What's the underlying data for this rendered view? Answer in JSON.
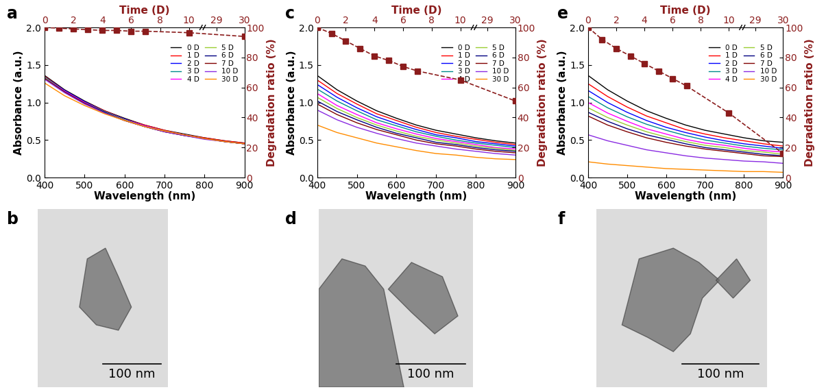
{
  "chart_data": [
    {
      "type": "line",
      "title": "a",
      "x_label": "Wavelength (nm)",
      "y_label": "Absorbance (a.u.)",
      "x2_label": "Time (D)",
      "y2_label": "Degradation ratio (%)",
      "x": [
        400,
        450,
        500,
        550,
        600,
        650,
        700,
        750,
        800,
        850,
        900
      ],
      "xlim": [
        400,
        900
      ],
      "xticks": [
        400,
        500,
        600,
        700,
        800,
        900
      ],
      "ylim": [
        0,
        2
      ],
      "yticks": [
        {
          "value": 0,
          "label": "0.0"
        },
        {
          "value": 0.5,
          "label": "0.5"
        },
        {
          "value": 1,
          "label": "1.0"
        },
        {
          "value": 1.5,
          "label": "1.5"
        },
        {
          "value": 2,
          "label": "2.0"
        }
      ],
      "x2lim": [
        0,
        30
      ],
      "x2ticks": [
        0,
        2,
        4,
        6,
        8,
        10,
        29,
        30
      ],
      "y2lim": [
        0,
        100
      ],
      "y2ticks": [
        0,
        20,
        40,
        60,
        80,
        100
      ],
      "legend": "upper right",
      "series": [
        {
          "name": "0 D",
          "color": "#000000",
          "values": [
            1.36,
            1.17,
            1.02,
            0.89,
            0.79,
            0.7,
            0.63,
            0.58,
            0.53,
            0.49,
            0.46
          ]
        },
        {
          "name": "1 D",
          "color": "#ff0000",
          "values": [
            1.35,
            1.16,
            1.01,
            0.89,
            0.78,
            0.7,
            0.63,
            0.57,
            0.53,
            0.49,
            0.46
          ]
        },
        {
          "name": "2 D",
          "color": "#0000ff",
          "values": [
            1.34,
            1.16,
            1.01,
            0.88,
            0.78,
            0.69,
            0.62,
            0.57,
            0.52,
            0.48,
            0.45
          ]
        },
        {
          "name": "3 D",
          "color": "#008b8b",
          "values": [
            1.34,
            1.15,
            1.0,
            0.88,
            0.77,
            0.69,
            0.62,
            0.57,
            0.52,
            0.48,
            0.45
          ]
        },
        {
          "name": "4 D",
          "color": "#ff00ff",
          "values": [
            1.33,
            1.15,
            1.0,
            0.87,
            0.77,
            0.69,
            0.62,
            0.57,
            0.52,
            0.48,
            0.45
          ]
        },
        {
          "name": "5 D",
          "color": "#9acd32",
          "values": [
            1.33,
            1.14,
            0.99,
            0.87,
            0.77,
            0.68,
            0.62,
            0.56,
            0.52,
            0.48,
            0.45
          ]
        },
        {
          "name": "6 D",
          "color": "#000080",
          "values": [
            1.32,
            1.14,
            0.99,
            0.87,
            0.76,
            0.68,
            0.61,
            0.56,
            0.52,
            0.48,
            0.45
          ]
        },
        {
          "name": "7 D",
          "color": "#800000",
          "values": [
            1.32,
            1.14,
            0.99,
            0.86,
            0.76,
            0.68,
            0.61,
            0.56,
            0.52,
            0.48,
            0.45
          ]
        },
        {
          "name": "10 D",
          "color": "#8a2be2",
          "values": [
            1.31,
            1.13,
            0.98,
            0.86,
            0.76,
            0.68,
            0.61,
            0.56,
            0.51,
            0.48,
            0.45
          ]
        },
        {
          "name": "30 D",
          "color": "#ff8c00",
          "values": [
            1.26,
            1.09,
            0.96,
            0.85,
            0.76,
            0.68,
            0.62,
            0.57,
            0.52,
            0.48,
            0.45
          ]
        },
        {
          "axis": "y2",
          "color": "#8b1c1c",
          "marker": "square",
          "line_style": "dashed",
          "x": [
            0,
            1,
            2,
            3,
            4,
            5,
            6,
            7,
            10,
            30
          ],
          "values": [
            100,
            99.5,
            99,
            98.5,
            98,
            98,
            97.5,
            97.5,
            96.5,
            94
          ]
        }
      ]
    },
    {
      "type": "line",
      "title": "c",
      "x_label": "Wavelength (nm)",
      "y_label": "Absorbance (a.u.)",
      "x2_label": "Time (D)",
      "y2_label": "Degradation ratio (%)",
      "x": [
        400,
        450,
        500,
        550,
        600,
        650,
        700,
        750,
        800,
        850,
        900
      ],
      "xlim": [
        400,
        900
      ],
      "xticks": [
        400,
        500,
        600,
        700,
        800,
        900
      ],
      "ylim": [
        0,
        2
      ],
      "yticks": [
        {
          "value": 0,
          "label": "0.0"
        },
        {
          "value": 0.5,
          "label": "0.5"
        },
        {
          "value": 1,
          "label": "1.0"
        },
        {
          "value": 1.5,
          "label": "1.5"
        },
        {
          "value": 2,
          "label": "2.0"
        }
      ],
      "x2lim": [
        0,
        30
      ],
      "x2ticks": [
        0,
        2,
        4,
        6,
        8,
        10,
        29,
        30
      ],
      "y2lim": [
        0,
        100
      ],
      "y2ticks": [
        0,
        20,
        40,
        60,
        80,
        100
      ],
      "legend": "upper right",
      "series": [
        {
          "name": "0 D",
          "color": "#000000",
          "values": [
            1.36,
            1.17,
            1.02,
            0.89,
            0.79,
            0.7,
            0.63,
            0.58,
            0.53,
            0.49,
            0.46
          ]
        },
        {
          "name": "1 D",
          "color": "#ff0000",
          "values": [
            1.3,
            1.12,
            0.98,
            0.85,
            0.76,
            0.67,
            0.6,
            0.55,
            0.51,
            0.47,
            0.44
          ]
        },
        {
          "name": "2 D",
          "color": "#0000ff",
          "values": [
            1.24,
            1.07,
            0.93,
            0.81,
            0.72,
            0.64,
            0.57,
            0.53,
            0.48,
            0.45,
            0.42
          ]
        },
        {
          "name": "3 D",
          "color": "#008b8b",
          "values": [
            1.18,
            1.02,
            0.89,
            0.77,
            0.69,
            0.61,
            0.55,
            0.5,
            0.46,
            0.43,
            0.4
          ]
        },
        {
          "name": "4 D",
          "color": "#ff00ff",
          "values": [
            1.12,
            0.96,
            0.84,
            0.73,
            0.65,
            0.58,
            0.52,
            0.48,
            0.44,
            0.4,
            0.38
          ]
        },
        {
          "name": "5 D",
          "color": "#9acd32",
          "values": [
            1.07,
            0.92,
            0.8,
            0.7,
            0.62,
            0.55,
            0.5,
            0.46,
            0.42,
            0.39,
            0.36
          ]
        },
        {
          "name": "6 D",
          "color": "#000080",
          "values": [
            1.02,
            0.88,
            0.77,
            0.67,
            0.59,
            0.53,
            0.47,
            0.44,
            0.4,
            0.37,
            0.35
          ]
        },
        {
          "name": "7 D",
          "color": "#800000",
          "values": [
            0.98,
            0.84,
            0.73,
            0.64,
            0.57,
            0.5,
            0.45,
            0.42,
            0.38,
            0.35,
            0.33
          ]
        },
        {
          "name": "10 D",
          "color": "#8a2be2",
          "values": [
            0.9,
            0.77,
            0.67,
            0.59,
            0.52,
            0.46,
            0.42,
            0.38,
            0.35,
            0.32,
            0.3
          ]
        },
        {
          "name": "30 D",
          "color": "#ff8c00",
          "values": [
            0.7,
            0.6,
            0.53,
            0.46,
            0.41,
            0.36,
            0.32,
            0.3,
            0.27,
            0.25,
            0.24
          ]
        },
        {
          "axis": "y2",
          "color": "#8b1c1c",
          "marker": "square",
          "line_style": "dashed",
          "x": [
            0,
            1,
            2,
            3,
            4,
            5,
            6,
            7,
            10,
            30
          ],
          "values": [
            100,
            96,
            91,
            86,
            81,
            78,
            74,
            71,
            65,
            51
          ]
        }
      ]
    },
    {
      "type": "line",
      "title": "e",
      "x_label": "Wavelength (nm)",
      "y_label": "Absorbance (a.u.)",
      "x2_label": "Time (D)",
      "y2_label": "Degradation ratio (%)",
      "x": [
        400,
        450,
        500,
        550,
        600,
        650,
        700,
        750,
        800,
        850,
        900
      ],
      "xlim": [
        400,
        900
      ],
      "xticks": [
        400,
        500,
        600,
        700,
        800,
        900
      ],
      "ylim": [
        0,
        2
      ],
      "yticks": [
        {
          "value": 0,
          "label": "0.0"
        },
        {
          "value": 0.5,
          "label": "0.5"
        },
        {
          "value": 1,
          "label": "1.0"
        },
        {
          "value": 1.5,
          "label": "1.5"
        },
        {
          "value": 2,
          "label": "2.0"
        }
      ],
      "x2lim": [
        0,
        30
      ],
      "x2ticks": [
        0,
        2,
        4,
        6,
        8,
        10,
        29,
        30
      ],
      "y2lim": [
        0,
        100
      ],
      "y2ticks": [
        0,
        20,
        40,
        60,
        80,
        100
      ],
      "legend": "upper right",
      "series": [
        {
          "name": "0 D",
          "color": "#000000",
          "values": [
            1.36,
            1.17,
            1.02,
            0.89,
            0.79,
            0.7,
            0.63,
            0.58,
            0.53,
            0.49,
            0.47
          ]
        },
        {
          "name": "1 D",
          "color": "#ff0000",
          "values": [
            1.25,
            1.08,
            0.94,
            0.82,
            0.73,
            0.64,
            0.58,
            0.53,
            0.49,
            0.45,
            0.42
          ]
        },
        {
          "name": "2 D",
          "color": "#0000ff",
          "values": [
            1.16,
            1.0,
            0.87,
            0.76,
            0.67,
            0.6,
            0.54,
            0.49,
            0.45,
            0.42,
            0.39
          ]
        },
        {
          "name": "3 D",
          "color": "#008b8b",
          "values": [
            1.08,
            0.93,
            0.81,
            0.71,
            0.63,
            0.56,
            0.5,
            0.46,
            0.42,
            0.39,
            0.37
          ]
        },
        {
          "name": "4 D",
          "color": "#ff00ff",
          "values": [
            1.0,
            0.86,
            0.75,
            0.65,
            0.58,
            0.51,
            0.46,
            0.43,
            0.39,
            0.36,
            0.34
          ]
        },
        {
          "name": "5 D",
          "color": "#9acd32",
          "values": [
            0.93,
            0.8,
            0.7,
            0.61,
            0.54,
            0.48,
            0.43,
            0.4,
            0.36,
            0.34,
            0.31
          ]
        },
        {
          "name": "6 D",
          "color": "#000080",
          "values": [
            0.87,
            0.75,
            0.65,
            0.57,
            0.51,
            0.45,
            0.4,
            0.37,
            0.34,
            0.31,
            0.29
          ]
        },
        {
          "name": "7 D",
          "color": "#800000",
          "values": [
            0.82,
            0.7,
            0.61,
            0.53,
            0.47,
            0.42,
            0.38,
            0.35,
            0.32,
            0.29,
            0.28
          ]
        },
        {
          "name": "10 D",
          "color": "#8a2be2",
          "values": [
            0.57,
            0.49,
            0.43,
            0.37,
            0.33,
            0.29,
            0.26,
            0.24,
            0.22,
            0.21,
            0.19
          ]
        },
        {
          "name": "30 D",
          "color": "#ff8c00",
          "values": [
            0.21,
            0.18,
            0.16,
            0.14,
            0.12,
            0.11,
            0.1,
            0.09,
            0.08,
            0.08,
            0.07
          ]
        },
        {
          "axis": "y2",
          "color": "#8b1c1c",
          "marker": "square",
          "line_style": "dashed",
          "x": [
            0,
            1,
            2,
            3,
            4,
            5,
            6,
            7,
            10,
            30
          ],
          "values": [
            100,
            92,
            86,
            81,
            76,
            71,
            66,
            61,
            43,
            16
          ]
        }
      ]
    }
  ],
  "images": [
    {
      "label": "b",
      "scale_bar": "100 nm"
    },
    {
      "label": "d",
      "scale_bar": "100 nm"
    },
    {
      "label": "f",
      "scale_bar": "100 nm"
    }
  ]
}
